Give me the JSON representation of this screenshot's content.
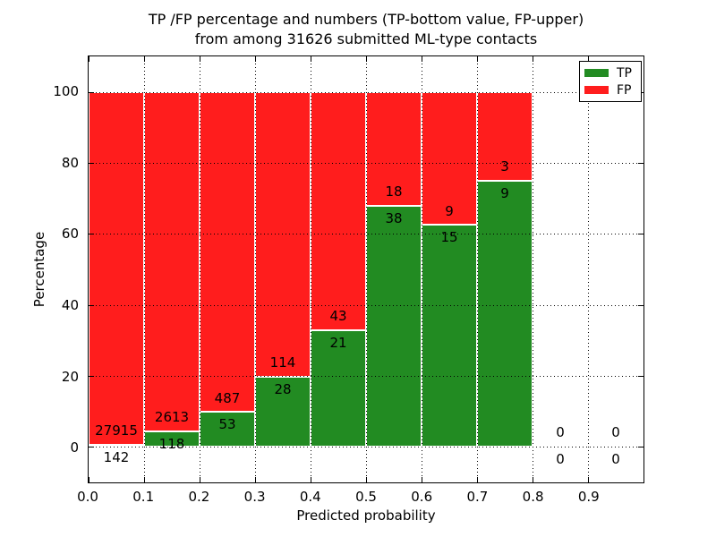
{
  "title": {
    "line1": "TP /FP percentage and numbers (TP-bottom value, FP-upper)",
    "line2": "from among 31626 submitted ML-type contacts"
  },
  "axes": {
    "x_label": "Predicted probability",
    "y_label": "Percentage",
    "x_tick_labels": [
      "0.0",
      "0.1",
      "0.2",
      "0.3",
      "0.4",
      "0.5",
      "0.6",
      "0.7",
      "0.8",
      "0.9"
    ],
    "y_tick_labels": [
      "0",
      "20",
      "40",
      "60",
      "80",
      "100"
    ]
  },
  "legend": {
    "items": [
      {
        "label": "TP",
        "color": "#228b22"
      },
      {
        "label": "FP",
        "color": "#ff1d1d"
      }
    ]
  },
  "chart_data": {
    "type": "bar",
    "stacked": true,
    "title": "TP /FP percentage and numbers (TP-bottom value, FP-upper) from among 31626 submitted ML-type contacts",
    "xlabel": "Predicted probability",
    "ylabel": "Percentage",
    "xlim": [
      0.0,
      1.0
    ],
    "ylim": [
      -10,
      110
    ],
    "grid": true,
    "legend_position": "upper right",
    "bin_starts": [
      0.0,
      0.1,
      0.2,
      0.3,
      0.4,
      0.5,
      0.6,
      0.7,
      0.8,
      0.9
    ],
    "bin_width": 0.1,
    "x_tick_values": [
      0.0,
      0.1,
      0.2,
      0.3,
      0.4,
      0.5,
      0.6,
      0.7,
      0.8,
      0.9
    ],
    "y_tick_values": [
      0,
      20,
      40,
      60,
      80,
      100
    ],
    "series": [
      {
        "name": "TP",
        "color": "#228b22",
        "counts": [
          142,
          118,
          53,
          28,
          21,
          38,
          15,
          9,
          0,
          0
        ],
        "percent": [
          0.51,
          4.32,
          9.81,
          19.72,
          32.81,
          67.86,
          62.5,
          75.0,
          0,
          0
        ]
      },
      {
        "name": "FP",
        "color": "#ff1d1d",
        "counts": [
          27915,
          2613,
          487,
          114,
          43,
          18,
          9,
          3,
          0,
          0
        ],
        "percent": [
          99.49,
          95.68,
          90.19,
          80.28,
          67.19,
          32.14,
          37.5,
          25.0,
          0,
          0
        ]
      }
    ],
    "label_offset_pct": {
      "fp_above_boundary": 4.0,
      "tp_below_boundary": 3.5
    }
  }
}
